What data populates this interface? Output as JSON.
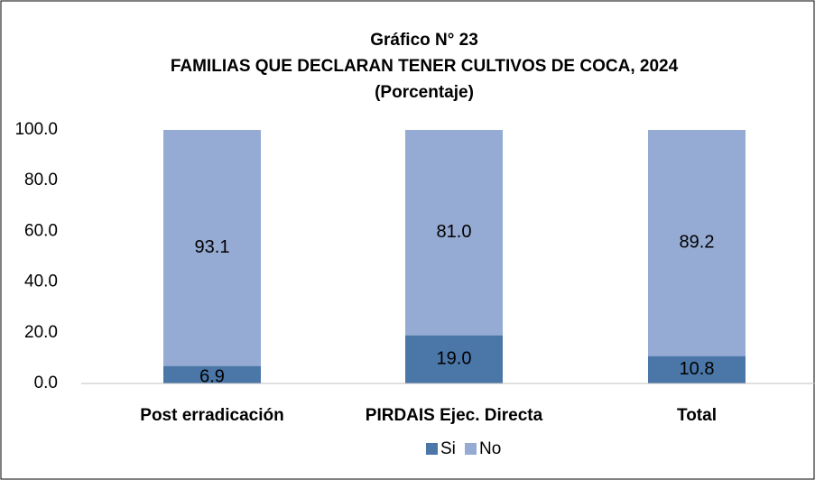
{
  "chart_data": {
    "type": "stacked_bar",
    "title": [
      "Gráfico N° 23",
      "FAMILIAS QUE DECLARAN TENER CULTIVOS DE COCA, 2024",
      "(Porcentaje)"
    ],
    "categories": [
      "Post erradicación",
      "PIRDAIS Ejec. Directa",
      "Total"
    ],
    "series": [
      {
        "name": "Si",
        "color": "#4a76a8",
        "values": [
          6.9,
          19.0,
          10.8
        ],
        "value_labels": [
          "6.9",
          "19.0",
          "10.8"
        ]
      },
      {
        "name": "No",
        "color": "#95abd3",
        "values": [
          93.1,
          81.0,
          89.2
        ],
        "value_labels": [
          "93.1",
          "81.0",
          "89.2"
        ]
      }
    ],
    "ylim": [
      0,
      100
    ],
    "yticks": [
      {
        "value": 0,
        "label": "0.0"
      },
      {
        "value": 20,
        "label": "20.0"
      },
      {
        "value": 40,
        "label": "40.0"
      },
      {
        "value": 60,
        "label": "60.0"
      },
      {
        "value": 80,
        "label": "80.0"
      },
      {
        "value": 100,
        "label": "100.0"
      }
    ],
    "grid": false,
    "legend": "bottom"
  }
}
